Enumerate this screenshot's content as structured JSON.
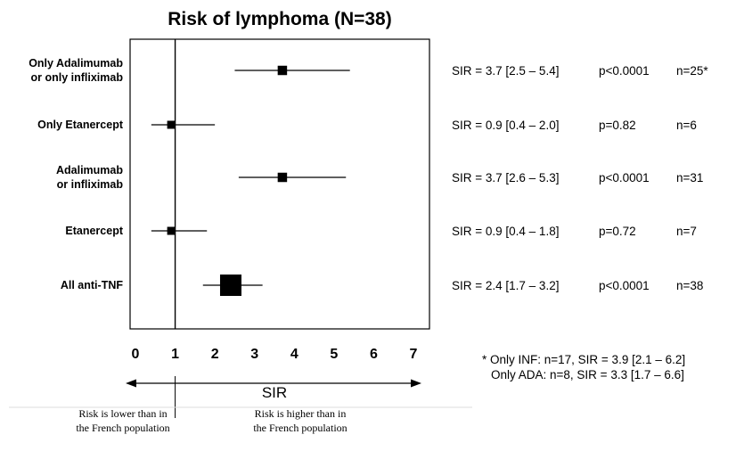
{
  "chart_data": {
    "type": "forest",
    "title": "Risk of lymphoma (N=38)",
    "xlabel": "SIR",
    "xlim": [
      0,
      7
    ],
    "xticks": [
      0,
      1,
      2,
      3,
      4,
      5,
      6,
      7
    ],
    "reference_line": 1,
    "rows": [
      {
        "label_lines": [
          "Only Adalimumab",
          "or only infliximab"
        ],
        "est": 3.7,
        "lo": 2.5,
        "hi": 5.4,
        "sir_text": "SIR = 3.7 [2.5 – 5.4]",
        "p_text": "p<0.0001",
        "n_text": "n=25*",
        "n": 25
      },
      {
        "label_lines": [
          "Only Etanercept"
        ],
        "est": 0.9,
        "lo": 0.4,
        "hi": 2.0,
        "sir_text": "SIR = 0.9 [0.4 – 2.0]",
        "p_text": "p=0.82",
        "n_text": "n=6",
        "n": 6
      },
      {
        "label_lines": [
          "Adalimumab",
          "or infliximab"
        ],
        "est": 3.7,
        "lo": 2.6,
        "hi": 5.3,
        "sir_text": "SIR = 3.7 [2.6 – 5.3]",
        "p_text": "p<0.0001",
        "n_text": "n=31",
        "n": 31
      },
      {
        "label_lines": [
          "Etanercept"
        ],
        "est": 0.9,
        "lo": 0.4,
        "hi": 1.8,
        "sir_text": "SIR = 0.9 [0.4 – 1.8]",
        "p_text": "p=0.72",
        "n_text": "n=7",
        "n": 7
      },
      {
        "label_lines": [
          "All anti-TNF"
        ],
        "est": 2.4,
        "lo": 1.7,
        "hi": 3.2,
        "sir_text": "SIR = 2.4 [1.7 – 3.2]",
        "p_text": "p<0.0001",
        "n_text": "n=38",
        "n": 38
      }
    ],
    "footnote_lines": [
      "* Only INF: n=17, SIR = 3.9 [2.1 – 6.2]",
      "Only ADA: n=8, SIR = 3.3 [1.7 – 6.6]"
    ],
    "left_direction_lines": [
      "Risk is lower than in",
      "the French population"
    ],
    "right_direction_lines": [
      "Risk is higher than in",
      "the French population"
    ]
  }
}
